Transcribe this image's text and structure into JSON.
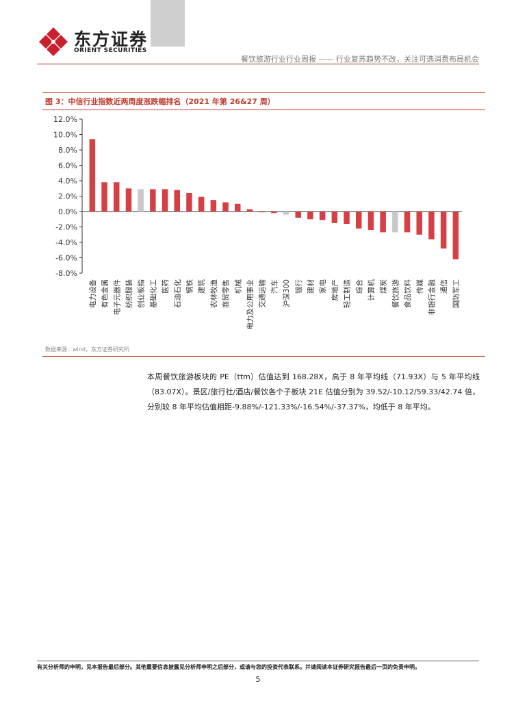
{
  "header": {
    "brand_cn": "东方证券",
    "brand_en": "ORIENT SECURITIES",
    "report_title": "餐饮旅游行业行业周报 —— 行业复苏趋势不改，关注可选消费布局机会",
    "brand_color": "#c8202c"
  },
  "figure": {
    "title": "图 3：中信行业指数近两周度涨跌幅排名（2021 年第 26&27 周）",
    "source": "数据来源：wind，东方证券研究所"
  },
  "chart_data": {
    "type": "bar",
    "categories": [
      "电力设备",
      "有色金属",
      "电子元器件",
      "纺织服装",
      "创业板指",
      "基础化工",
      "医药",
      "石油石化",
      "钢铁",
      "建筑",
      "农林牧渔",
      "商贸零售",
      "机械",
      "电力及公用事业",
      "交通运输",
      "汽车",
      "沪深300",
      "银行",
      "建材",
      "家电",
      "房地产",
      "轻工制造",
      "综合",
      "计算机",
      "煤炭",
      "餐饮旅游",
      "食品饮料",
      "传媒",
      "非银行金融",
      "通信",
      "国防军工"
    ],
    "values": [
      9.4,
      3.8,
      3.8,
      3.0,
      2.9,
      2.9,
      2.9,
      2.8,
      2.4,
      1.9,
      1.5,
      1.2,
      1.0,
      0.3,
      -0.1,
      -0.2,
      -0.4,
      -0.8,
      -1.0,
      -1.1,
      -1.5,
      -1.6,
      -2.2,
      -2.4,
      -2.7,
      -2.7,
      -2.7,
      -3.0,
      -3.6,
      -4.8,
      -6.2
    ],
    "highlight": [
      "创业板指",
      "沪深300",
      "餐饮旅游"
    ],
    "ylim": [
      -8,
      12
    ],
    "yticks": [
      "12.0%",
      "10.0%",
      "8.0%",
      "6.0%",
      "4.0%",
      "2.0%",
      "0.0%",
      "-2.0%",
      "-4.0%",
      "-6.0%",
      "-8.0%"
    ],
    "bar_color": "#d64045",
    "highlight_color": "#c8c8c8",
    "grid": false,
    "legend": "none"
  },
  "body": {
    "paragraph": "本周餐饮旅游板块的 PE（ttm）估值达到 168.28X，高于 8 年平均线（71.93X）与 5 年平均线（83.07X）。景区/旅行社/酒店/餐饮各个子板块 21E 估值分别为 39.52/-10.12/59.33/42.74 倍，分别较 8 年平均估值相距-9.88%/-121.33%/-16.54%/-37.37%，均低于 8 年平均。"
  },
  "footer": {
    "disclaimer": "有关分析师的申明，见本报告最后部分。其他重要信息披露见分析师申明之后部分，或请与您的投资代表联系。并请阅读本证券研究报告最后一页的免责申明。",
    "page_number": "5"
  }
}
